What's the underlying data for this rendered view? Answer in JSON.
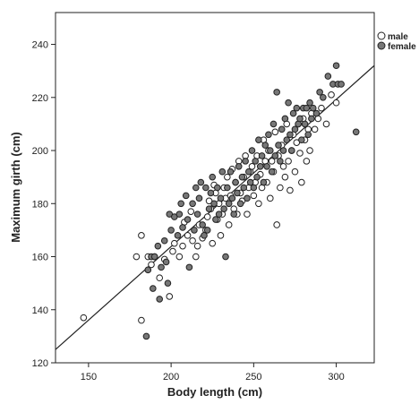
{
  "chart_data": {
    "type": "scatter",
    "title": "",
    "xlabel": "Body length (cm)",
    "ylabel": "Maximum girth (cm)",
    "xlim": [
      130,
      323
    ],
    "ylim": [
      120,
      252
    ],
    "xticks": [
      150,
      200,
      250,
      300
    ],
    "yticks": [
      120,
      140,
      160,
      180,
      200,
      220,
      240
    ],
    "legend_position": "top-right",
    "fit_line": {
      "x": [
        130,
        323
      ],
      "y": [
        125,
        232
      ]
    },
    "colors": {
      "male": "#ffffff",
      "female": "#777777",
      "stroke": "#222222",
      "line": "#222222"
    },
    "series": [
      {
        "name": "male",
        "points": [
          [
            147,
            137
          ],
          [
            179,
            160
          ],
          [
            182,
            168
          ],
          [
            182,
            136
          ],
          [
            186,
            160
          ],
          [
            188,
            157
          ],
          [
            190,
            160
          ],
          [
            193,
            152
          ],
          [
            196,
            159
          ],
          [
            199,
            145
          ],
          [
            201,
            162
          ],
          [
            202,
            165
          ],
          [
            205,
            160
          ],
          [
            207,
            164
          ],
          [
            208,
            173
          ],
          [
            210,
            168
          ],
          [
            212,
            177
          ],
          [
            213,
            166
          ],
          [
            215,
            160
          ],
          [
            216,
            164
          ],
          [
            217,
            172
          ],
          [
            219,
            167
          ],
          [
            221,
            170
          ],
          [
            222,
            175
          ],
          [
            223,
            181
          ],
          [
            224,
            178
          ],
          [
            225,
            165
          ],
          [
            226,
            187
          ],
          [
            227,
            184
          ],
          [
            228,
            174
          ],
          [
            229,
            180
          ],
          [
            230,
            168
          ],
          [
            231,
            176
          ],
          [
            232,
            186
          ],
          [
            233,
            182
          ],
          [
            234,
            190
          ],
          [
            235,
            172
          ],
          [
            236,
            183
          ],
          [
            237,
            193
          ],
          [
            238,
            178
          ],
          [
            239,
            188
          ],
          [
            240,
            176
          ],
          [
            241,
            196
          ],
          [
            242,
            184
          ],
          [
            243,
            181
          ],
          [
            244,
            190
          ],
          [
            245,
            198
          ],
          [
            246,
            176
          ],
          [
            247,
            186
          ],
          [
            248,
            192
          ],
          [
            249,
            194
          ],
          [
            250,
            183
          ],
          [
            251,
            188
          ],
          [
            252,
            198
          ],
          [
            253,
            180
          ],
          [
            254,
            191
          ],
          [
            255,
            186
          ],
          [
            256,
            204
          ],
          [
            257,
            196
          ],
          [
            258,
            188
          ],
          [
            259,
            200
          ],
          [
            260,
            182
          ],
          [
            261,
            196
          ],
          [
            262,
            192
          ],
          [
            263,
            207
          ],
          [
            264,
            172
          ],
          [
            265,
            198
          ],
          [
            266,
            186
          ],
          [
            267,
            202
          ],
          [
            268,
            194
          ],
          [
            269,
            190
          ],
          [
            270,
            210
          ],
          [
            271,
            196
          ],
          [
            272,
            185
          ],
          [
            273,
            200
          ],
          [
            274,
            206
          ],
          [
            275,
            192
          ],
          [
            276,
            203
          ],
          [
            277,
            210
          ],
          [
            278,
            199
          ],
          [
            279,
            188
          ],
          [
            280,
            212
          ],
          [
            281,
            204
          ],
          [
            282,
            196
          ],
          [
            283,
            208
          ],
          [
            284,
            200
          ],
          [
            285,
            214
          ],
          [
            287,
            208
          ],
          [
            289,
            212
          ],
          [
            291,
            216
          ],
          [
            294,
            210
          ],
          [
            297,
            221
          ],
          [
            300,
            218
          ]
        ]
      },
      {
        "name": "female",
        "points": [
          [
            185,
            130
          ],
          [
            186,
            155
          ],
          [
            188,
            160
          ],
          [
            189,
            148
          ],
          [
            190,
            160
          ],
          [
            192,
            164
          ],
          [
            193,
            144
          ],
          [
            194,
            156
          ],
          [
            196,
            166
          ],
          [
            197,
            158
          ],
          [
            198,
            150
          ],
          [
            199,
            176
          ],
          [
            200,
            170
          ],
          [
            202,
            175
          ],
          [
            204,
            168
          ],
          [
            205,
            176
          ],
          [
            206,
            180
          ],
          [
            207,
            171
          ],
          [
            209,
            183
          ],
          [
            210,
            174
          ],
          [
            211,
            156
          ],
          [
            213,
            180
          ],
          [
            214,
            170
          ],
          [
            215,
            186
          ],
          [
            216,
            176
          ],
          [
            217,
            182
          ],
          [
            218,
            188
          ],
          [
            219,
            172
          ],
          [
            220,
            168
          ],
          [
            221,
            186
          ],
          [
            222,
            170
          ],
          [
            223,
            178
          ],
          [
            224,
            184
          ],
          [
            225,
            190
          ],
          [
            226,
            180
          ],
          [
            227,
            174
          ],
          [
            228,
            186
          ],
          [
            229,
            176
          ],
          [
            230,
            182
          ],
          [
            231,
            192
          ],
          [
            232,
            178
          ],
          [
            233,
            160
          ],
          [
            234,
            186
          ],
          [
            235,
            180
          ],
          [
            236,
            192
          ],
          [
            237,
            182
          ],
          [
            238,
            176
          ],
          [
            239,
            188
          ],
          [
            240,
            184
          ],
          [
            241,
            194
          ],
          [
            242,
            180
          ],
          [
            243,
            190
          ],
          [
            244,
            186
          ],
          [
            245,
            196
          ],
          [
            246,
            182
          ],
          [
            247,
            192
          ],
          [
            248,
            188
          ],
          [
            249,
            200
          ],
          [
            250,
            186
          ],
          [
            251,
            196
          ],
          [
            252,
            190
          ],
          [
            253,
            204
          ],
          [
            254,
            194
          ],
          [
            255,
            198
          ],
          [
            256,
            188
          ],
          [
            257,
            202
          ],
          [
            258,
            194
          ],
          [
            259,
            206
          ],
          [
            260,
            200
          ],
          [
            261,
            192
          ],
          [
            262,
            210
          ],
          [
            263,
            198
          ],
          [
            264,
            222
          ],
          [
            265,
            202
          ],
          [
            266,
            196
          ],
          [
            267,
            208
          ],
          [
            268,
            200
          ],
          [
            269,
            212
          ],
          [
            270,
            204
          ],
          [
            271,
            218
          ],
          [
            272,
            206
          ],
          [
            273,
            200
          ],
          [
            274,
            214
          ],
          [
            275,
            208
          ],
          [
            276,
            216
          ],
          [
            277,
            210
          ],
          [
            278,
            212
          ],
          [
            279,
            204
          ],
          [
            280,
            216
          ],
          [
            281,
            210
          ],
          [
            282,
            216
          ],
          [
            283,
            206
          ],
          [
            284,
            218
          ],
          [
            285,
            212
          ],
          [
            286,
            216
          ],
          [
            288,
            214
          ],
          [
            290,
            222
          ],
          [
            292,
            220
          ],
          [
            295,
            228
          ],
          [
            298,
            225
          ],
          [
            300,
            232
          ],
          [
            301,
            225
          ],
          [
            303,
            225
          ],
          [
            312,
            207
          ]
        ]
      }
    ]
  }
}
